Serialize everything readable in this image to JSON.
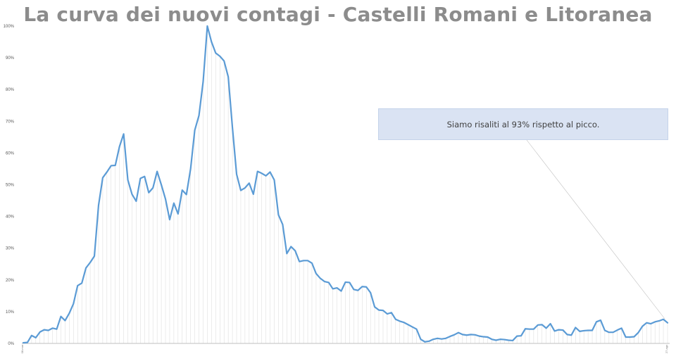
{
  "title": "La curva dei nuovi contagi - Castelli Romani e Litoranea",
  "annotation": "Siamo risaliti al 93% rispetto al picco.",
  "colors": {
    "line": "#5b9bd5",
    "droplines": "#d9d9d9",
    "title": "#8c8c8c",
    "callout_bg": "#dae3f3"
  },
  "chart_data": {
    "type": "line",
    "title": "La curva dei nuovi contagi - Castelli Romani e Litoranea",
    "xlabel": "",
    "ylabel": "",
    "ylim": [
      0,
      100
    ],
    "y_ticks": [
      "0%",
      "10%",
      "20%",
      "30%",
      "40%",
      "50%",
      "60%",
      "70%",
      "80%",
      "90%",
      "100%"
    ],
    "grid": false,
    "legend": "none",
    "annotation": "Siamo risaliti al 93% rispetto al picco.",
    "x_tick_first": "08-mar",
    "x_tick_last": "27-ago",
    "values": [
      0.2,
      0.3,
      2.5,
      1.8,
      3.6,
      4.3,
      4.1,
      4.8,
      4.5,
      8.5,
      7.2,
      9.5,
      12.5,
      18.2,
      19,
      23.8,
      25.5,
      27.5,
      43.5,
      52.2,
      54,
      56,
      56.1,
      62,
      66,
      51.5,
      47,
      44.8,
      52,
      52.6,
      47.5,
      49,
      54.2,
      50,
      45.5,
      39,
      44.2,
      40.8,
      48.3,
      46.9,
      55,
      67.2,
      71.8,
      82.5,
      100,
      95,
      91.5,
      90.5,
      89,
      84,
      68,
      53.3,
      48.2,
      49,
      50.5,
      47,
      54.2,
      53.6,
      52.8,
      54,
      51.5,
      40.5,
      37.5,
      28.3,
      30.5,
      29.2,
      25.8,
      26.1,
      26.1,
      25.3,
      22,
      20.5,
      19.5,
      19.2,
      17.2,
      17.5,
      16.5,
      19.3,
      19.2,
      17,
      16.7,
      17.9,
      17.8,
      16,
      11.5,
      10.5,
      10.4,
      9.3,
      9.7,
      7.6,
      7,
      6.6,
      5.9,
      5.2,
      4.5,
      1.3,
      0.5,
      0.7,
      1.3,
      1.6,
      1.4,
      1.6,
      2.2,
      2.7,
      3.4,
      2.8,
      2.6,
      2.8,
      2.7,
      2.3,
      2.1,
      2,
      1.3,
      1,
      1.3,
      1.2,
      1,
      0.9,
      2.3,
      2.4,
      4.6,
      4.5,
      4.5,
      5.8,
      5.9,
      4.8,
      6.2,
      3.9,
      4.3,
      4.2,
      2.8,
      2.6,
      5,
      3.8,
      4,
      4.1,
      4.1,
      6.8,
      7.3,
      4.1,
      3.5,
      3.5,
      4.2,
      4.8,
      2,
      2,
      2.1,
      3.4,
      5.4,
      6.5,
      6.2,
      6.8,
      7.1,
      7.6,
      6.5
    ]
  }
}
